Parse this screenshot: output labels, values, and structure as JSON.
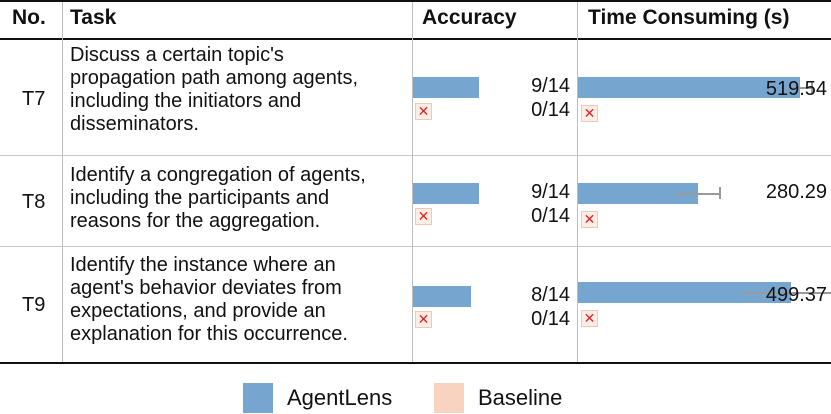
{
  "header": {
    "no": "No.",
    "task": "Task",
    "accuracy": "Accuracy",
    "time": "Time Consuming (s)"
  },
  "rows": [
    {
      "id": "T7",
      "task_lines": [
        "Discuss a certain topic's",
        "propagation path among agents,",
        "including the initiators and",
        "disseminators."
      ],
      "accuracy_label": "9/14",
      "baseline_accuracy_label": "0/14",
      "time_label": "519.54"
    },
    {
      "id": "T8",
      "task_lines": [
        "Identify a congregation of agents,",
        "including the participants and",
        "reasons for the aggregation."
      ],
      "accuracy_label": "9/14",
      "baseline_accuracy_label": "0/14",
      "time_label": "280.29"
    },
    {
      "id": "T9",
      "task_lines": [
        "Identify the instance where an",
        "agent's behavior deviates from",
        "expectations, and provide an",
        "explanation for this occurrence."
      ],
      "accuracy_label": "8/14",
      "baseline_accuracy_label": "0/14",
      "time_label": "499.37"
    }
  ],
  "baseline_mark": "✕",
  "legend": {
    "agentlens": "AgentLens",
    "baseline": "Baseline"
  },
  "colors": {
    "agentlens": "#76a6cf",
    "baseline": "#f8d4c0",
    "baseline_mark": "#e0242a"
  },
  "chart_data": {
    "type": "bar",
    "categories": [
      "T7",
      "T8",
      "T9"
    ],
    "series": [
      {
        "name": "AgentLens",
        "accuracy": [
          9,
          9,
          8
        ],
        "accuracy_total": 14,
        "time_seconds": [
          519.54,
          280.29,
          499.37
        ],
        "time_error": [
          55,
          100,
          225
        ]
      },
      {
        "name": "Baseline",
        "accuracy": [
          0,
          0,
          0
        ],
        "accuracy_total": 14,
        "time_seconds": [
          0,
          0,
          0
        ]
      }
    ],
    "time_axis_max": 600,
    "legend_position": "bottom"
  }
}
